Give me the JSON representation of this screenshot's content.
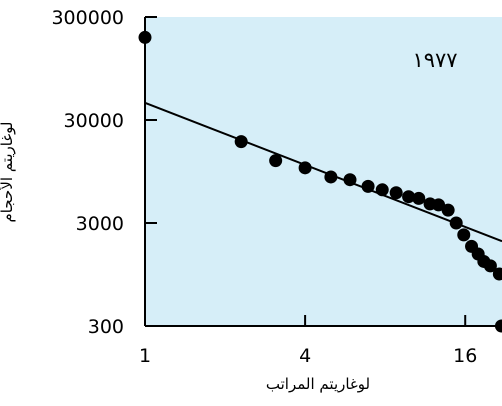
{
  "chart_data": {
    "type": "scatter",
    "xscale": "log",
    "yscale": "log",
    "xlabel": "لوغاريتم المراتب",
    "ylabel": "لوغاريتم الأحجام",
    "annotation": "١٩٧٧",
    "background": "#d6eef8",
    "point_color": "#000000",
    "line_color": "#000000",
    "xlim": [
      1,
      22
    ],
    "ylim": [
      300,
      300000
    ],
    "xticks": [
      {
        "value": 1,
        "label": "1"
      },
      {
        "value": 4,
        "label": "4"
      },
      {
        "value": 16,
        "label": "16"
      }
    ],
    "yticks": [
      {
        "value": 300,
        "label": "300"
      },
      {
        "value": 3000,
        "label": "3000"
      },
      {
        "value": 30000,
        "label": "30000"
      },
      {
        "value": 300000,
        "label": "300000"
      }
    ],
    "points": [
      {
        "x": 1,
        "y": 190000
      },
      {
        "x": 2.3,
        "y": 18500
      },
      {
        "x": 3.1,
        "y": 12100
      },
      {
        "x": 4,
        "y": 10300
      },
      {
        "x": 5,
        "y": 8400
      },
      {
        "x": 5.9,
        "y": 7900
      },
      {
        "x": 6.9,
        "y": 6800
      },
      {
        "x": 7.8,
        "y": 6300
      },
      {
        "x": 8.8,
        "y": 5900
      },
      {
        "x": 9.8,
        "y": 5400
      },
      {
        "x": 10.7,
        "y": 5200
      },
      {
        "x": 11.8,
        "y": 4600
      },
      {
        "x": 12.7,
        "y": 4500
      },
      {
        "x": 13.8,
        "y": 4000
      },
      {
        "x": 14.8,
        "y": 3000
      },
      {
        "x": 15.8,
        "y": 2300
      },
      {
        "x": 16.9,
        "y": 1780
      },
      {
        "x": 17.9,
        "y": 1500
      },
      {
        "x": 18.8,
        "y": 1270
      },
      {
        "x": 19.9,
        "y": 1150
      },
      {
        "x": 21.5,
        "y": 960
      },
      {
        "x": 21.9,
        "y": 300
      }
    ],
    "trend_line": {
      "x": [
        1,
        22
      ],
      "y": [
        44000,
        2000
      ]
    }
  }
}
